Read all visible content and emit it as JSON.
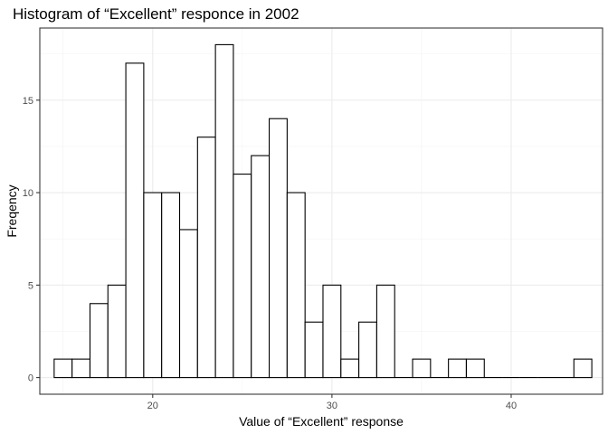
{
  "chart_data": {
    "type": "bar",
    "subtype": "histogram",
    "title": "Histogram of “Excellent” responce in 2002",
    "xlabel": "Value of “Excellent” response",
    "ylabel": "Freqency",
    "xlim": [
      13.7,
      45.1
    ],
    "ylim": [
      -0.9,
      18.9
    ],
    "xticks": [
      20,
      30,
      40
    ],
    "yticks": [
      0,
      5,
      10,
      15
    ],
    "xtick_labels": [
      "20",
      "30",
      "40"
    ],
    "ytick_labels": [
      "0",
      "5",
      "10",
      "15"
    ],
    "grid": true,
    "bins": [
      {
        "x0": 14.5,
        "x1": 15.5,
        "count": 1
      },
      {
        "x0": 15.5,
        "x1": 16.5,
        "count": 1
      },
      {
        "x0": 16.5,
        "x1": 17.5,
        "count": 4
      },
      {
        "x0": 17.5,
        "x1": 18.5,
        "count": 5
      },
      {
        "x0": 18.5,
        "x1": 19.5,
        "count": 17
      },
      {
        "x0": 19.5,
        "x1": 20.5,
        "count": 10
      },
      {
        "x0": 20.5,
        "x1": 21.5,
        "count": 10
      },
      {
        "x0": 21.5,
        "x1": 22.5,
        "count": 8
      },
      {
        "x0": 22.5,
        "x1": 23.5,
        "count": 13
      },
      {
        "x0": 23.5,
        "x1": 24.5,
        "count": 18
      },
      {
        "x0": 24.5,
        "x1": 25.5,
        "count": 11
      },
      {
        "x0": 25.5,
        "x1": 26.5,
        "count": 12
      },
      {
        "x0": 26.5,
        "x1": 27.5,
        "count": 14
      },
      {
        "x0": 27.5,
        "x1": 28.5,
        "count": 10
      },
      {
        "x0": 28.5,
        "x1": 29.5,
        "count": 3
      },
      {
        "x0": 29.5,
        "x1": 30.5,
        "count": 5
      },
      {
        "x0": 30.5,
        "x1": 31.5,
        "count": 1
      },
      {
        "x0": 31.5,
        "x1": 32.5,
        "count": 3
      },
      {
        "x0": 32.5,
        "x1": 33.5,
        "count": 5
      },
      {
        "x0": 33.5,
        "x1": 34.5,
        "count": 0
      },
      {
        "x0": 34.5,
        "x1": 35.5,
        "count": 1
      },
      {
        "x0": 35.5,
        "x1": 36.5,
        "count": 0
      },
      {
        "x0": 36.5,
        "x1": 37.5,
        "count": 1
      },
      {
        "x0": 37.5,
        "x1": 38.5,
        "count": 1
      },
      {
        "x0": 38.5,
        "x1": 39.5,
        "count": 0
      },
      {
        "x0": 39.5,
        "x1": 40.5,
        "count": 0
      },
      {
        "x0": 40.5,
        "x1": 41.5,
        "count": 0
      },
      {
        "x0": 41.5,
        "x1": 42.5,
        "count": 0
      },
      {
        "x0": 42.5,
        "x1": 43.5,
        "count": 0
      },
      {
        "x0": 43.5,
        "x1": 44.5,
        "count": 1
      }
    ]
  }
}
